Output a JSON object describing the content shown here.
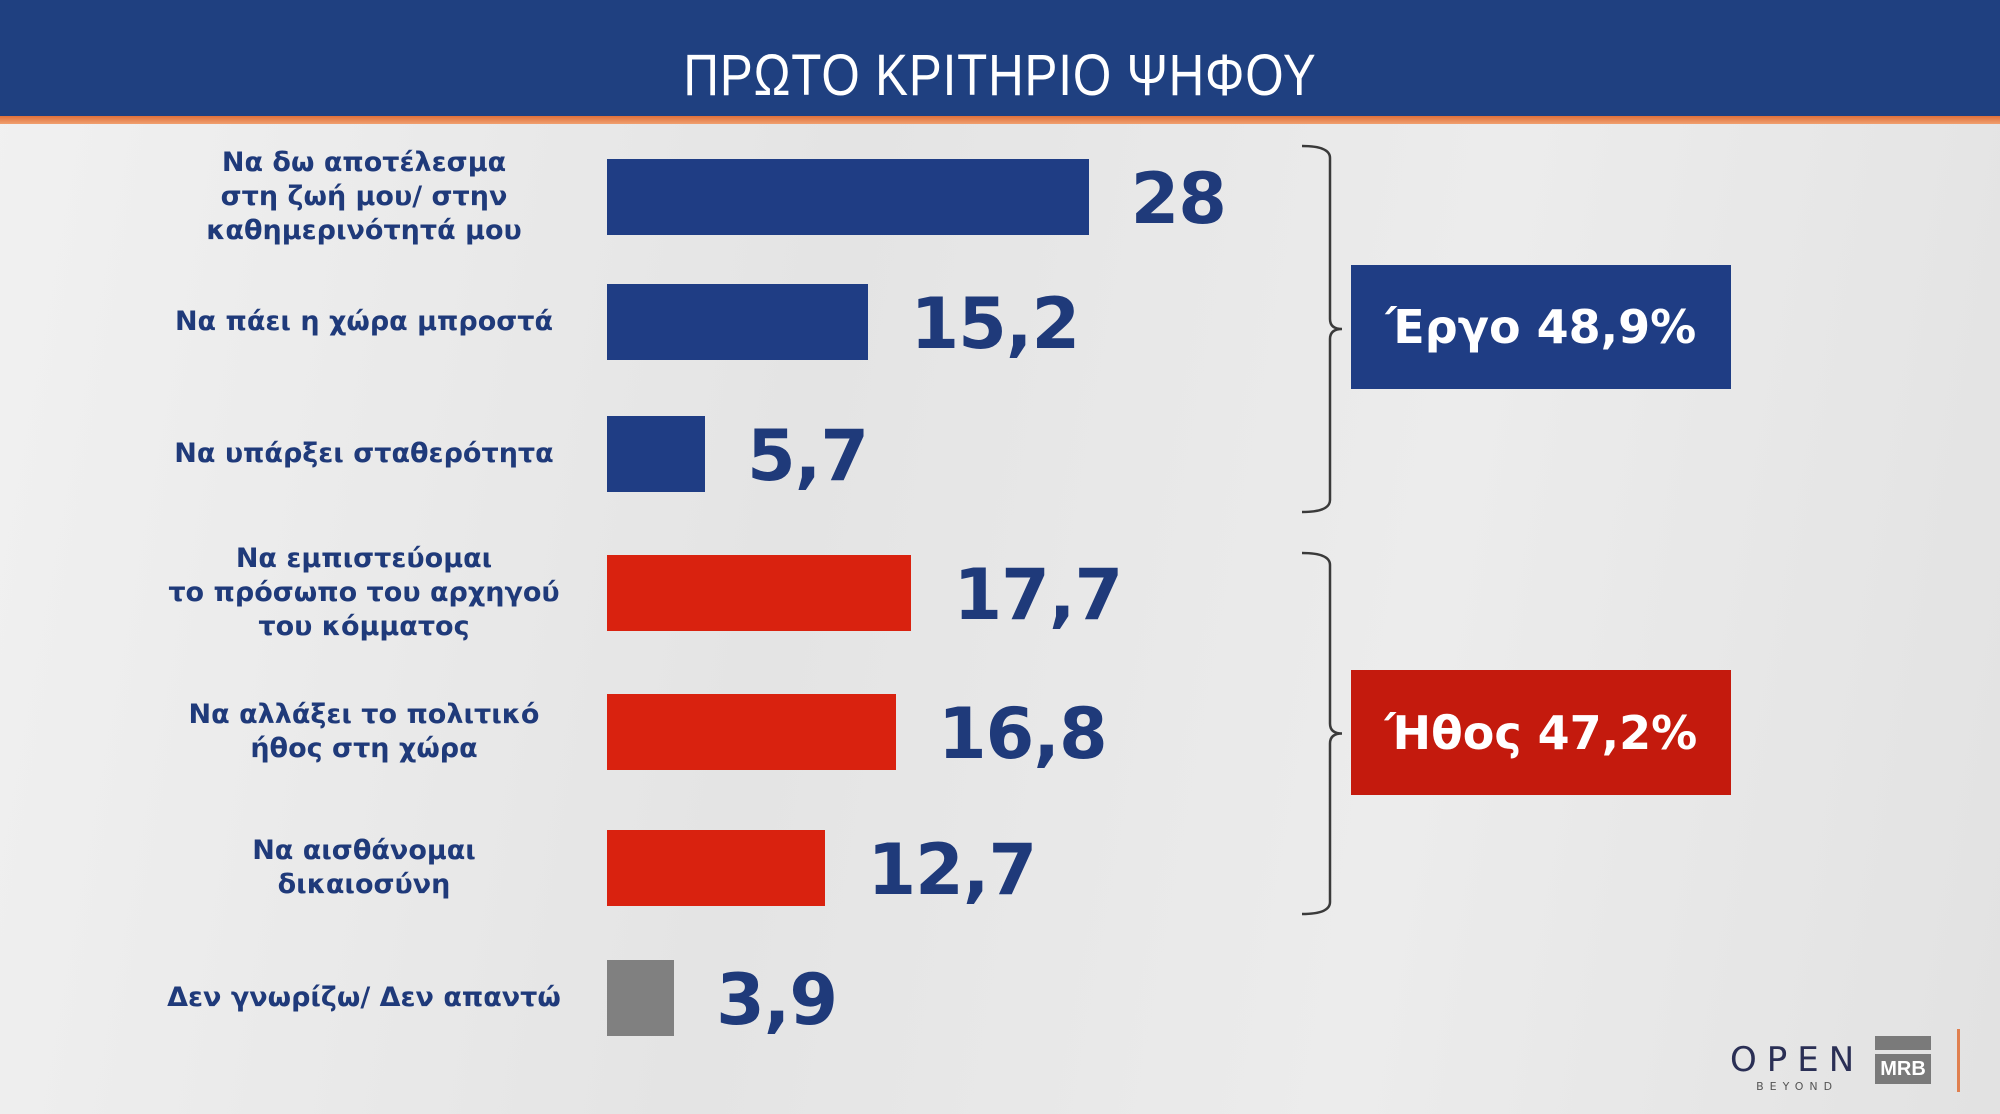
{
  "header": {
    "title": "ΠΡΩΤΟ ΚΡΙΤΗΡΙΟ ΨΗΦΟΥ"
  },
  "chart_data": {
    "type": "bar",
    "orientation": "horizontal",
    "title": "ΠΡΩΤΟ ΚΡΙΤΗΡΙΟ ΨΗΦΟΥ",
    "categories": [
      "Να δω αποτέλεσμα στη ζωή μου/ στην καθημερινότητά μου",
      "Να πάει η χώρα μπροστά",
      "Να υπάρξει σταθερότητα",
      "Να εμπιστεύομαι το πρόσωπο του αρχηγού του κόμματος",
      "Να αλλάξει το πολιτικό ήθος στη χώρα",
      "Να αισθάνομαι δικαιοσύνη",
      "Δεν γνωρίζω/ Δεν απαντώ"
    ],
    "category_lines": [
      [
        "Να δω αποτέλεσμα",
        "στη ζωή μου/ στην",
        "καθημερινότητά μου"
      ],
      [
        "Να πάει η χώρα μπροστά"
      ],
      [
        "Να υπάρξει σταθερότητα"
      ],
      [
        "Να εμπιστεύομαι",
        "το πρόσωπο του αρχηγού",
        "του κόμματος"
      ],
      [
        "Να αλλάξει το πολιτικό",
        "ήθος στη χώρα"
      ],
      [
        "Να αισθάνομαι",
        "δικαιοσύνη"
      ],
      [
        "Δεν γνωρίζω/ Δεν απαντώ"
      ]
    ],
    "values": [
      28,
      15.2,
      5.7,
      17.7,
      16.8,
      12.7,
      3.9
    ],
    "value_labels": [
      "28",
      "15,2",
      "5,7",
      "17,7",
      "16,8",
      "12,7",
      "3,9"
    ],
    "bar_colors": [
      "#1f3d84",
      "#1f3d84",
      "#1f3d84",
      "#d9220f",
      "#d9220f",
      "#d9220f",
      "#808080"
    ],
    "groups": [
      {
        "label": "Έργο 48,9%",
        "members": [
          0,
          1,
          2
        ],
        "color": "#1f3d84"
      },
      {
        "label": "Ήθος 47,2%",
        "members": [
          3,
          4,
          5
        ],
        "color": "#c41a0d"
      }
    ],
    "xlabel": "",
    "ylabel": "",
    "grid": false
  },
  "logos": {
    "open": "OPEN",
    "open_sub": "BEYOND",
    "mrb": "MRB"
  }
}
